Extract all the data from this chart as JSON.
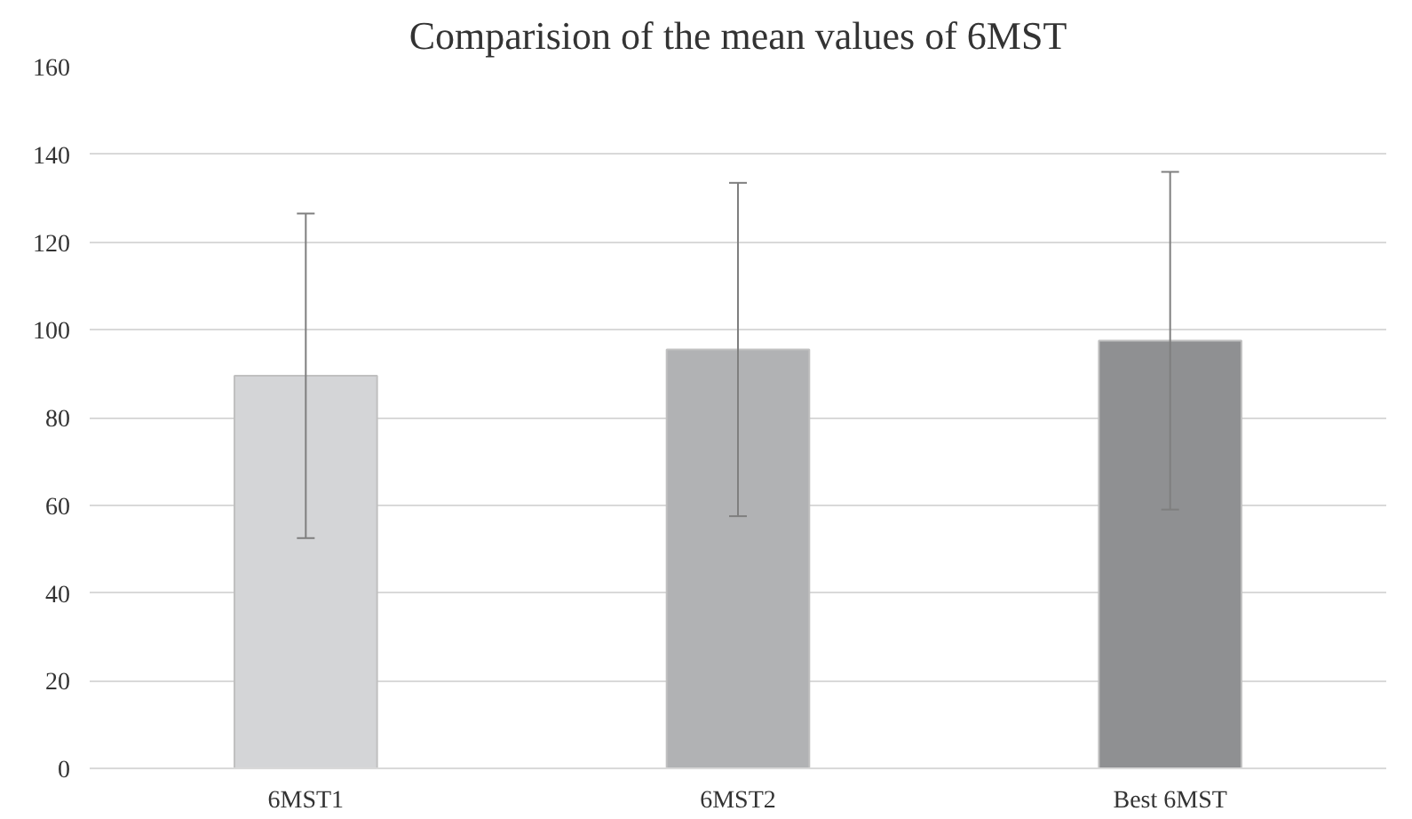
{
  "chart_data": {
    "type": "bar",
    "title": "Comparision of the mean values of 6MST",
    "categories": [
      "6MST1",
      "6MST2",
      "Best 6MST"
    ],
    "values": [
      89.5,
      95.5,
      97.5
    ],
    "colors": [
      "#d4d5d7",
      "#b1b2b4",
      "#8f9092"
    ],
    "errors": [
      37,
      38,
      38.5
    ],
    "ylim": [
      0,
      160
    ],
    "yticks": [
      0,
      20,
      40,
      60,
      80,
      100,
      120,
      140,
      160
    ],
    "grid": "y"
  }
}
